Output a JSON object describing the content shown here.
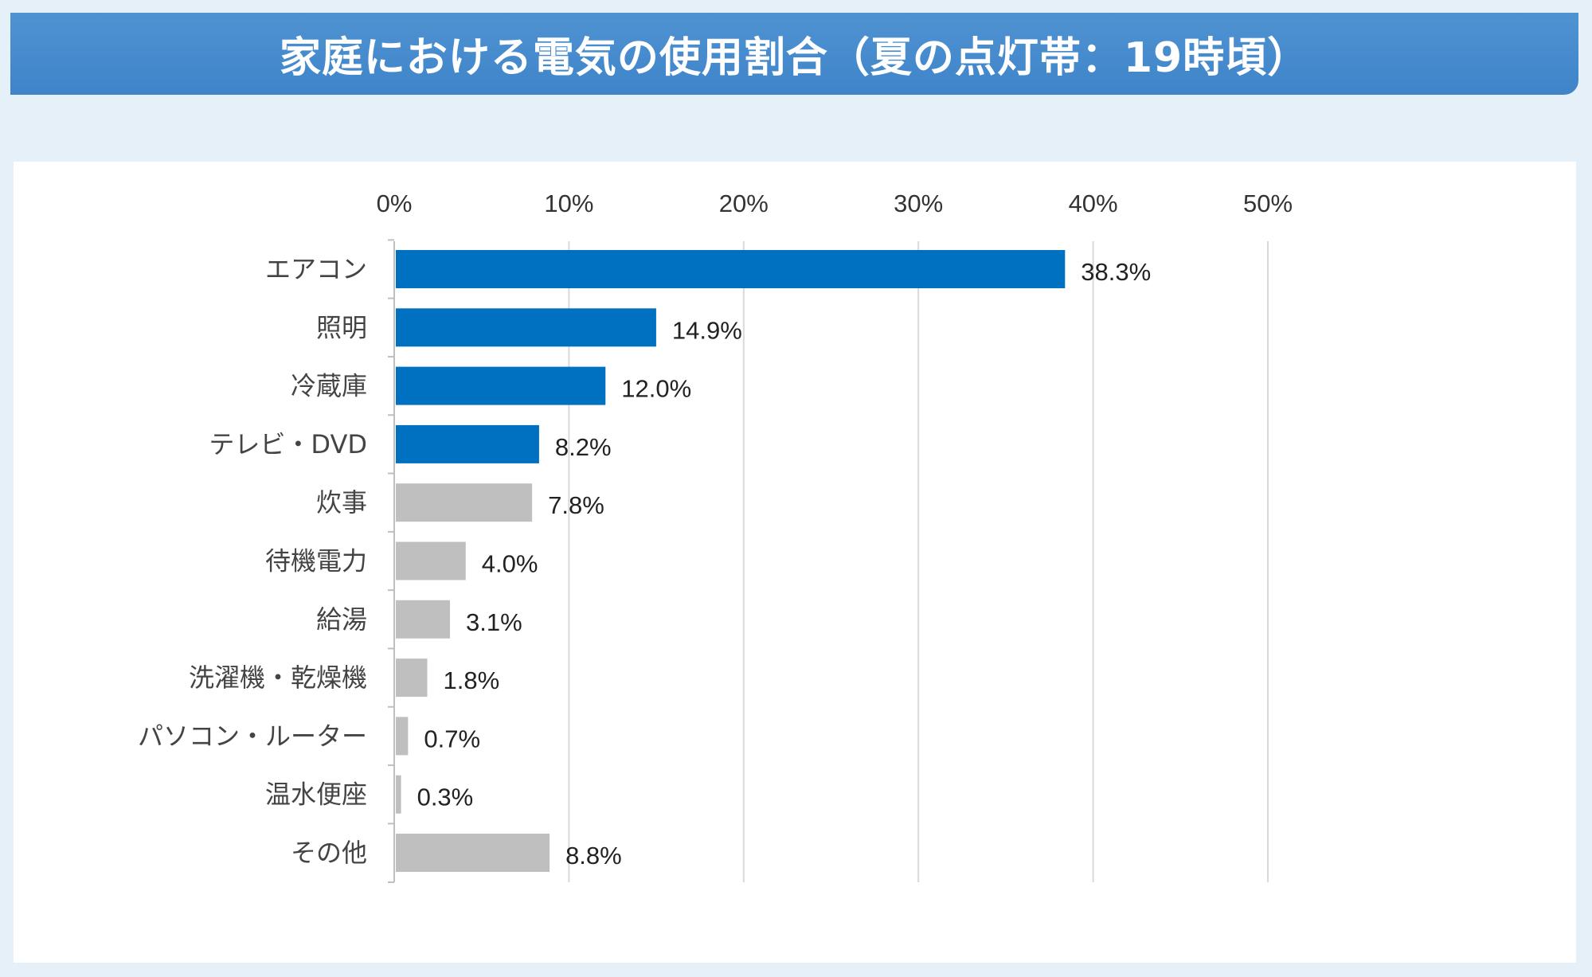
{
  "header": {
    "title": "家庭における電気の使用割合（夏の点灯帯：19時頃）"
  },
  "colors": {
    "highlight": "#0070c0",
    "other": "#bfbfbf",
    "header": "#4a8ecf",
    "background": "#e6f0f9"
  },
  "chart_data": {
    "type": "bar",
    "orientation": "horizontal",
    "title": "家庭における電気の使用割合（夏の点灯帯：19時頃）",
    "xlim": [
      0,
      50
    ],
    "ticks": [
      0,
      10,
      20,
      30,
      40,
      50
    ],
    "tick_labels": [
      "0%",
      "10%",
      "20%",
      "30%",
      "40%",
      "50%"
    ],
    "axis_position": "top",
    "grid": true,
    "categories": [
      "エアコン",
      "照明",
      "冷蔵庫",
      "テレビ・DVD",
      "炊事",
      "待機電力",
      "給湯",
      "洗濯機・乾燥機",
      "パソコン・ルーター",
      "温水便座",
      "その他"
    ],
    "values": [
      38.3,
      14.9,
      12.0,
      8.2,
      7.8,
      4.0,
      3.1,
      1.8,
      0.7,
      0.3,
      8.8
    ],
    "value_labels": [
      "38.3%",
      "14.9%",
      "12.0%",
      "8.2%",
      "7.8%",
      "4.0%",
      "3.1%",
      "1.8%",
      "0.7%",
      "0.3%",
      "8.8%"
    ],
    "highlighted": [
      true,
      true,
      true,
      true,
      false,
      false,
      false,
      false,
      false,
      false,
      false
    ]
  }
}
